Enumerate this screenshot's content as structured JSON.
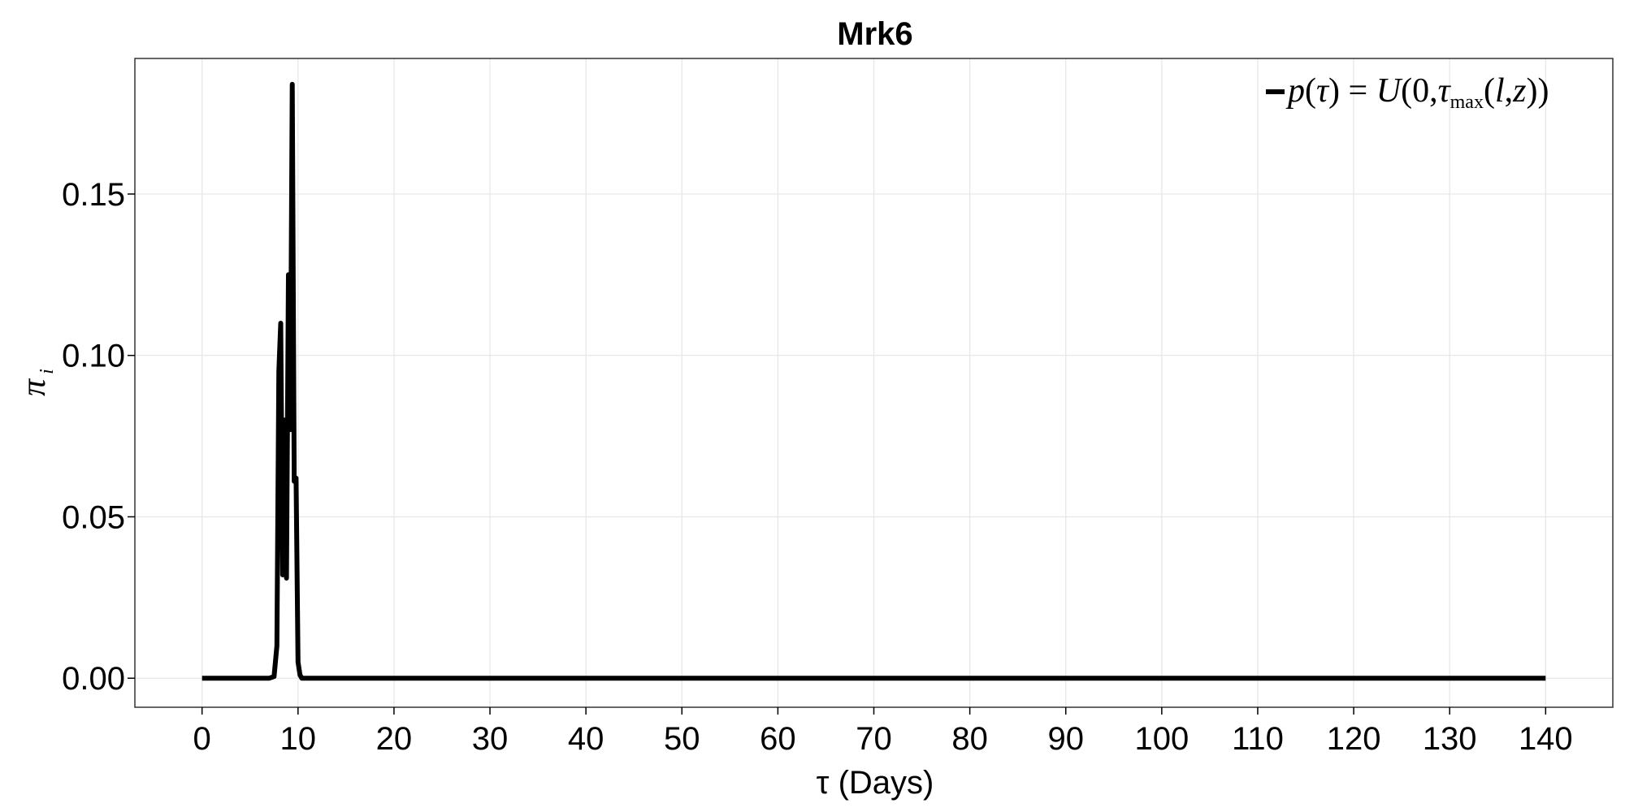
{
  "chart_data": {
    "type": "line",
    "title": "Mrk6",
    "xlabel": "τ (Days)",
    "ylabel": "π",
    "ylabel_sub": "i",
    "xlim": [
      -7,
      147
    ],
    "ylim": [
      -0.009,
      0.192
    ],
    "xticks": [
      0,
      10,
      20,
      30,
      40,
      50,
      60,
      70,
      80,
      90,
      100,
      110,
      120,
      130,
      140
    ],
    "yticks": [
      0.0,
      0.05,
      0.1,
      0.15
    ],
    "ytick_labels": [
      "0.00",
      "0.05",
      "0.10",
      "0.15"
    ],
    "grid": true,
    "legend_position": "top-right",
    "series": [
      {
        "name": "p(τ) = U(0,τmax(l,z))",
        "color": "#000000",
        "x": [
          0,
          7,
          7.5,
          7.8,
          8.0,
          8.2,
          8.4,
          8.6,
          8.8,
          9.0,
          9.2,
          9.4,
          9.6,
          9.8,
          10.0,
          10.2,
          10.4,
          10.7,
          11.0,
          140
        ],
        "y": [
          0,
          0,
          0.0005,
          0.01,
          0.095,
          0.11,
          0.032,
          0.08,
          0.031,
          0.125,
          0.077,
          0.184,
          0.061,
          0.062,
          0.005,
          0.001,
          0,
          0,
          0,
          0
        ]
      }
    ]
  },
  "legend": {
    "formula": {
      "p": "p",
      "open1": "(",
      "tau1": "τ",
      "close1": ")",
      "eq": " = ",
      "U": "U",
      "open2": "(",
      "zero": "0",
      "comma1": ",",
      "tau2": "τ",
      "max": "max",
      "open3": "(",
      "l": "l",
      "comma2": ",",
      "z": "z",
      "close3": "))"
    }
  }
}
